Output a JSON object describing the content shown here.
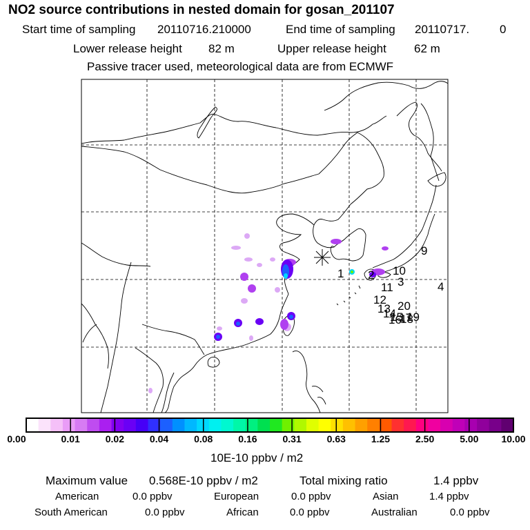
{
  "header": {
    "title": "NO2 source contributions in nested domain for gosan_201107",
    "start_label": "Start time of sampling",
    "start_value": "20110716.210000",
    "end_label": "End time of sampling",
    "end_value": "20110717.",
    "end_suffix": "0",
    "lower_label": "Lower release height",
    "lower_value": "82 m",
    "upper_label": "Upper release height",
    "upper_value": "62 m",
    "note": "Passive tracer used, meteorological data are from ECMWF"
  },
  "map": {
    "receptor_marker": "asterisk-icon",
    "source_labels": [
      "1",
      "2",
      "3",
      "4",
      "9",
      "10",
      "11",
      "12",
      "13",
      "14",
      "15",
      "16",
      "17",
      "18",
      "19",
      "20"
    ]
  },
  "colorbar": {
    "ticks": [
      "0.00",
      "0.01",
      "0.02",
      "0.04",
      "0.08",
      "0.16",
      "0.31",
      "0.63",
      "1.25",
      "2.50",
      "5.00",
      "10.00"
    ],
    "unit": "10E-10 ppbv / m2",
    "colors": [
      "#ffffff",
      "#fbe3fb",
      "#f5c0f8",
      "#e99cf7",
      "#d77bf3",
      "#bf4cf0",
      "#aa1ff0",
      "#8200f0",
      "#6a00f5",
      "#4600f7",
      "#3030ff",
      "#1c60ff",
      "#0090ff",
      "#00b8ff",
      "#00d8ff",
      "#00f0f0",
      "#00f8d0",
      "#00f8a8",
      "#00f080",
      "#00e050",
      "#20e820",
      "#70f000",
      "#b0f800",
      "#e0ff00",
      "#ffff00",
      "#ffe000",
      "#ffc000",
      "#ffa000",
      "#ff8000",
      "#ff5a00",
      "#ff3030",
      "#ff1850",
      "#ff0080",
      "#f000a0",
      "#d800b0",
      "#c000b8",
      "#a800b0",
      "#90009c",
      "#78008a",
      "#600070"
    ]
  },
  "summary": {
    "max_label": "Maximum value",
    "max_value": "0.568E-10 ppbv / m2",
    "total_label": "Total mixing ratio",
    "total_value": "1.4 ppbv",
    "regions": [
      {
        "name": "American",
        "value": "0.0 ppbv"
      },
      {
        "name": "European",
        "value": "0.0 ppbv"
      },
      {
        "name": "Asian",
        "value": "1.4 ppbv"
      },
      {
        "name": "South American",
        "value": "0.0 ppbv"
      },
      {
        "name": "African",
        "value": "0.0 ppbv"
      },
      {
        "name": "Australian",
        "value": "0.0 ppbv"
      }
    ]
  }
}
